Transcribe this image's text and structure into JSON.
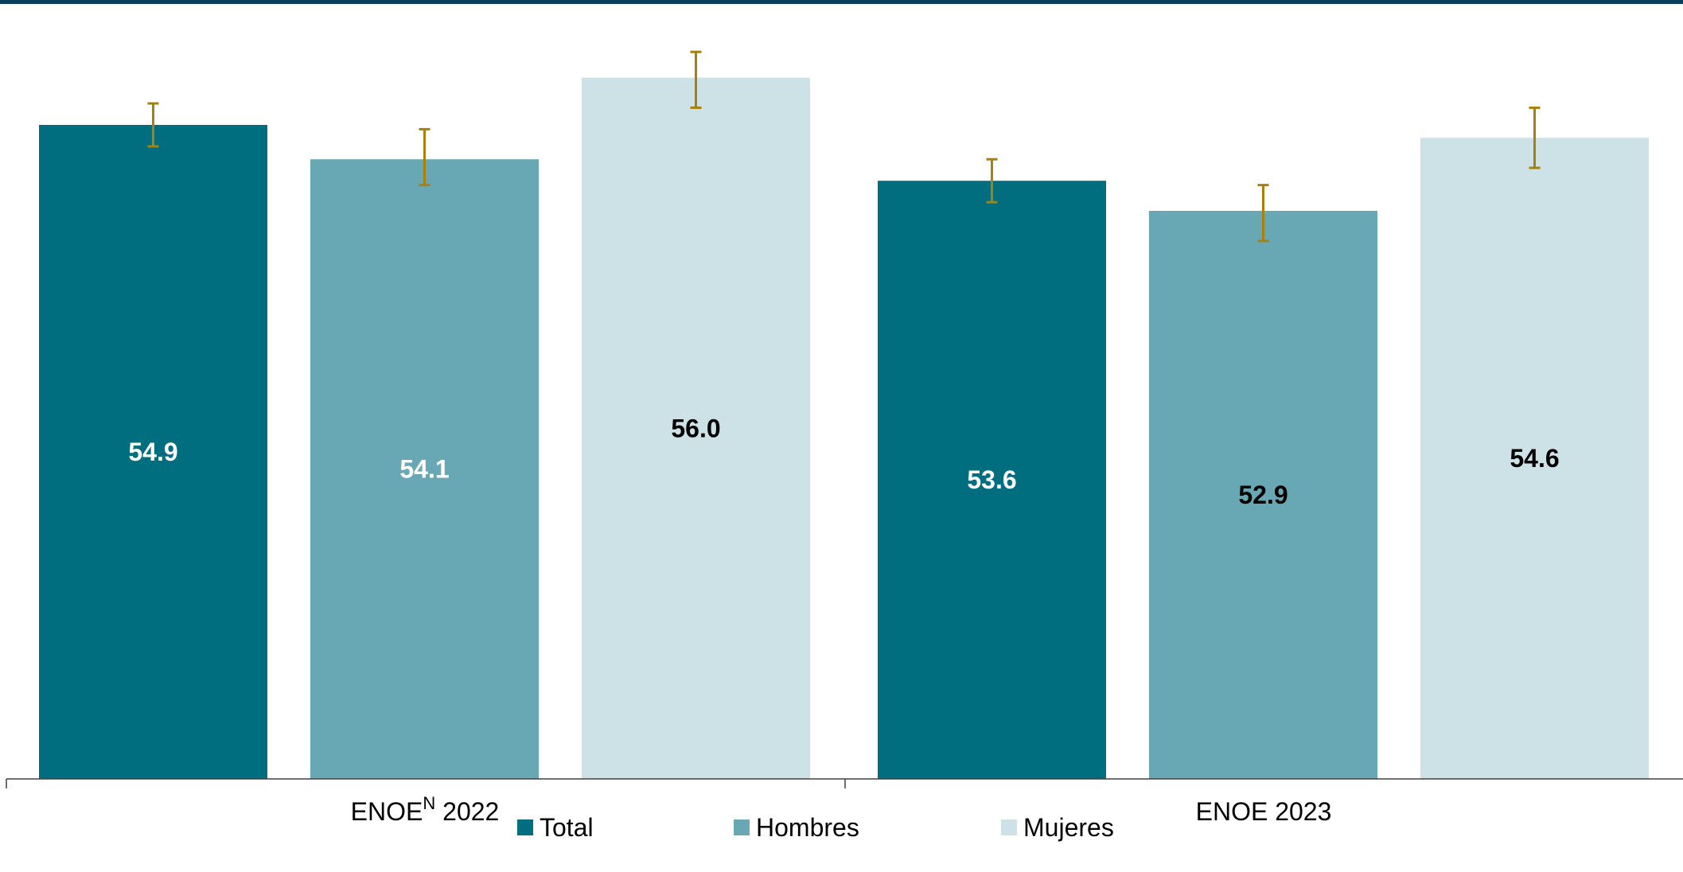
{
  "chart_data": {
    "type": "bar",
    "categories": [
      "ENOE",
      "ENOE  2023"
    ],
    "category_superscripts": [
      "N",
      ""
    ],
    "category_suffixes": [
      " 2022",
      ""
    ],
    "series": [
      {
        "name": "Total",
        "color": "#006e7f",
        "values": [
          54.9,
          53.6
        ],
        "label_color": "#ffffff",
        "error": [
          [
            54.4,
            55.4
          ],
          [
            53.1,
            54.1
          ]
        ]
      },
      {
        "name": "Hombres",
        "color": "#67a8b4",
        "values": [
          54.1,
          52.9
        ],
        "label_color": [
          "#ffffff",
          "#000000"
        ],
        "error": [
          [
            53.5,
            54.8
          ],
          [
            52.2,
            53.5
          ]
        ]
      },
      {
        "name": "Mujeres",
        "color": "#cde2e7",
        "values": [
          56.0,
          54.6
        ],
        "label_color": "#000000",
        "error": [
          [
            55.3,
            56.6
          ],
          [
            53.9,
            55.3
          ]
        ]
      }
    ],
    "value_labels": [
      [
        "54.9",
        "53.6"
      ],
      [
        "54.1",
        "52.9"
      ],
      [
        "56.0",
        "54.6"
      ]
    ],
    "error_bar_color": "#a8800a",
    "legend": {
      "position": "bottom"
    },
    "grid": false
  }
}
